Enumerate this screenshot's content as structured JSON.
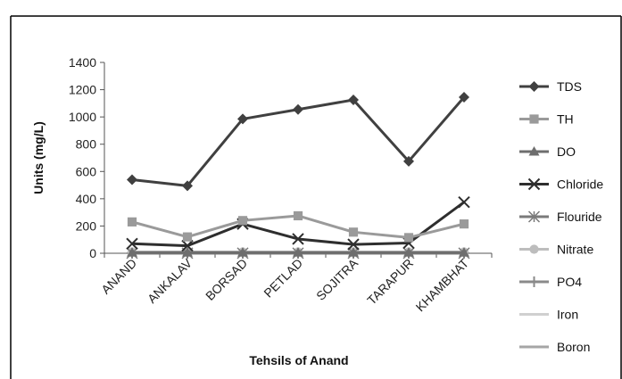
{
  "chart_data": {
    "type": "line",
    "title": "",
    "xlabel": "Tehsils of Anand",
    "ylabel": "Units (mg/L)",
    "ylim": [
      0,
      1400
    ],
    "yticks": [
      0,
      200,
      400,
      600,
      800,
      1000,
      1200,
      1400
    ],
    "grid": false,
    "legend_position": "right",
    "categories": [
      "ANAND",
      "ANKALAV",
      "BORSAD",
      "PETLAD",
      "SOJITRA",
      "TARAPUR",
      "KHAMBHAT"
    ],
    "series": [
      {
        "name": "TDS",
        "color": "#404040",
        "marker": "diamond",
        "values": [
          540,
          495,
          985,
          1055,
          1125,
          675,
          1145
        ]
      },
      {
        "name": "TH",
        "color": "#9a9a9a",
        "marker": "square",
        "values": [
          230,
          120,
          240,
          275,
          155,
          115,
          215
        ]
      },
      {
        "name": "DO",
        "color": "#6e6e6e",
        "marker": "triangle",
        "values": [
          5,
          5,
          5,
          5,
          5,
          5,
          5
        ]
      },
      {
        "name": "Chloride",
        "color": "#2e2e2e",
        "marker": "x",
        "values": [
          70,
          55,
          215,
          105,
          65,
          75,
          375
        ]
      },
      {
        "name": "Flouride",
        "color": "#7a7a7a",
        "marker": "star",
        "values": [
          1,
          1,
          1,
          1,
          1,
          1,
          1
        ]
      },
      {
        "name": "Nitrate",
        "color": "#bdbdbd",
        "marker": "circle",
        "values": [
          10,
          10,
          10,
          10,
          10,
          10,
          10
        ]
      },
      {
        "name": "PO4",
        "color": "#8a8a8a",
        "marker": "plus",
        "values": [
          1,
          1,
          1,
          1,
          1,
          1,
          1
        ]
      },
      {
        "name": "Iron",
        "color": "#d0d0d0",
        "marker": "none",
        "values": [
          1,
          1,
          1,
          1,
          1,
          1,
          1
        ]
      },
      {
        "name": "Boron",
        "color": "#a6a6a6",
        "marker": "none",
        "values": [
          1,
          1,
          1,
          1,
          1,
          1,
          1
        ]
      }
    ]
  }
}
